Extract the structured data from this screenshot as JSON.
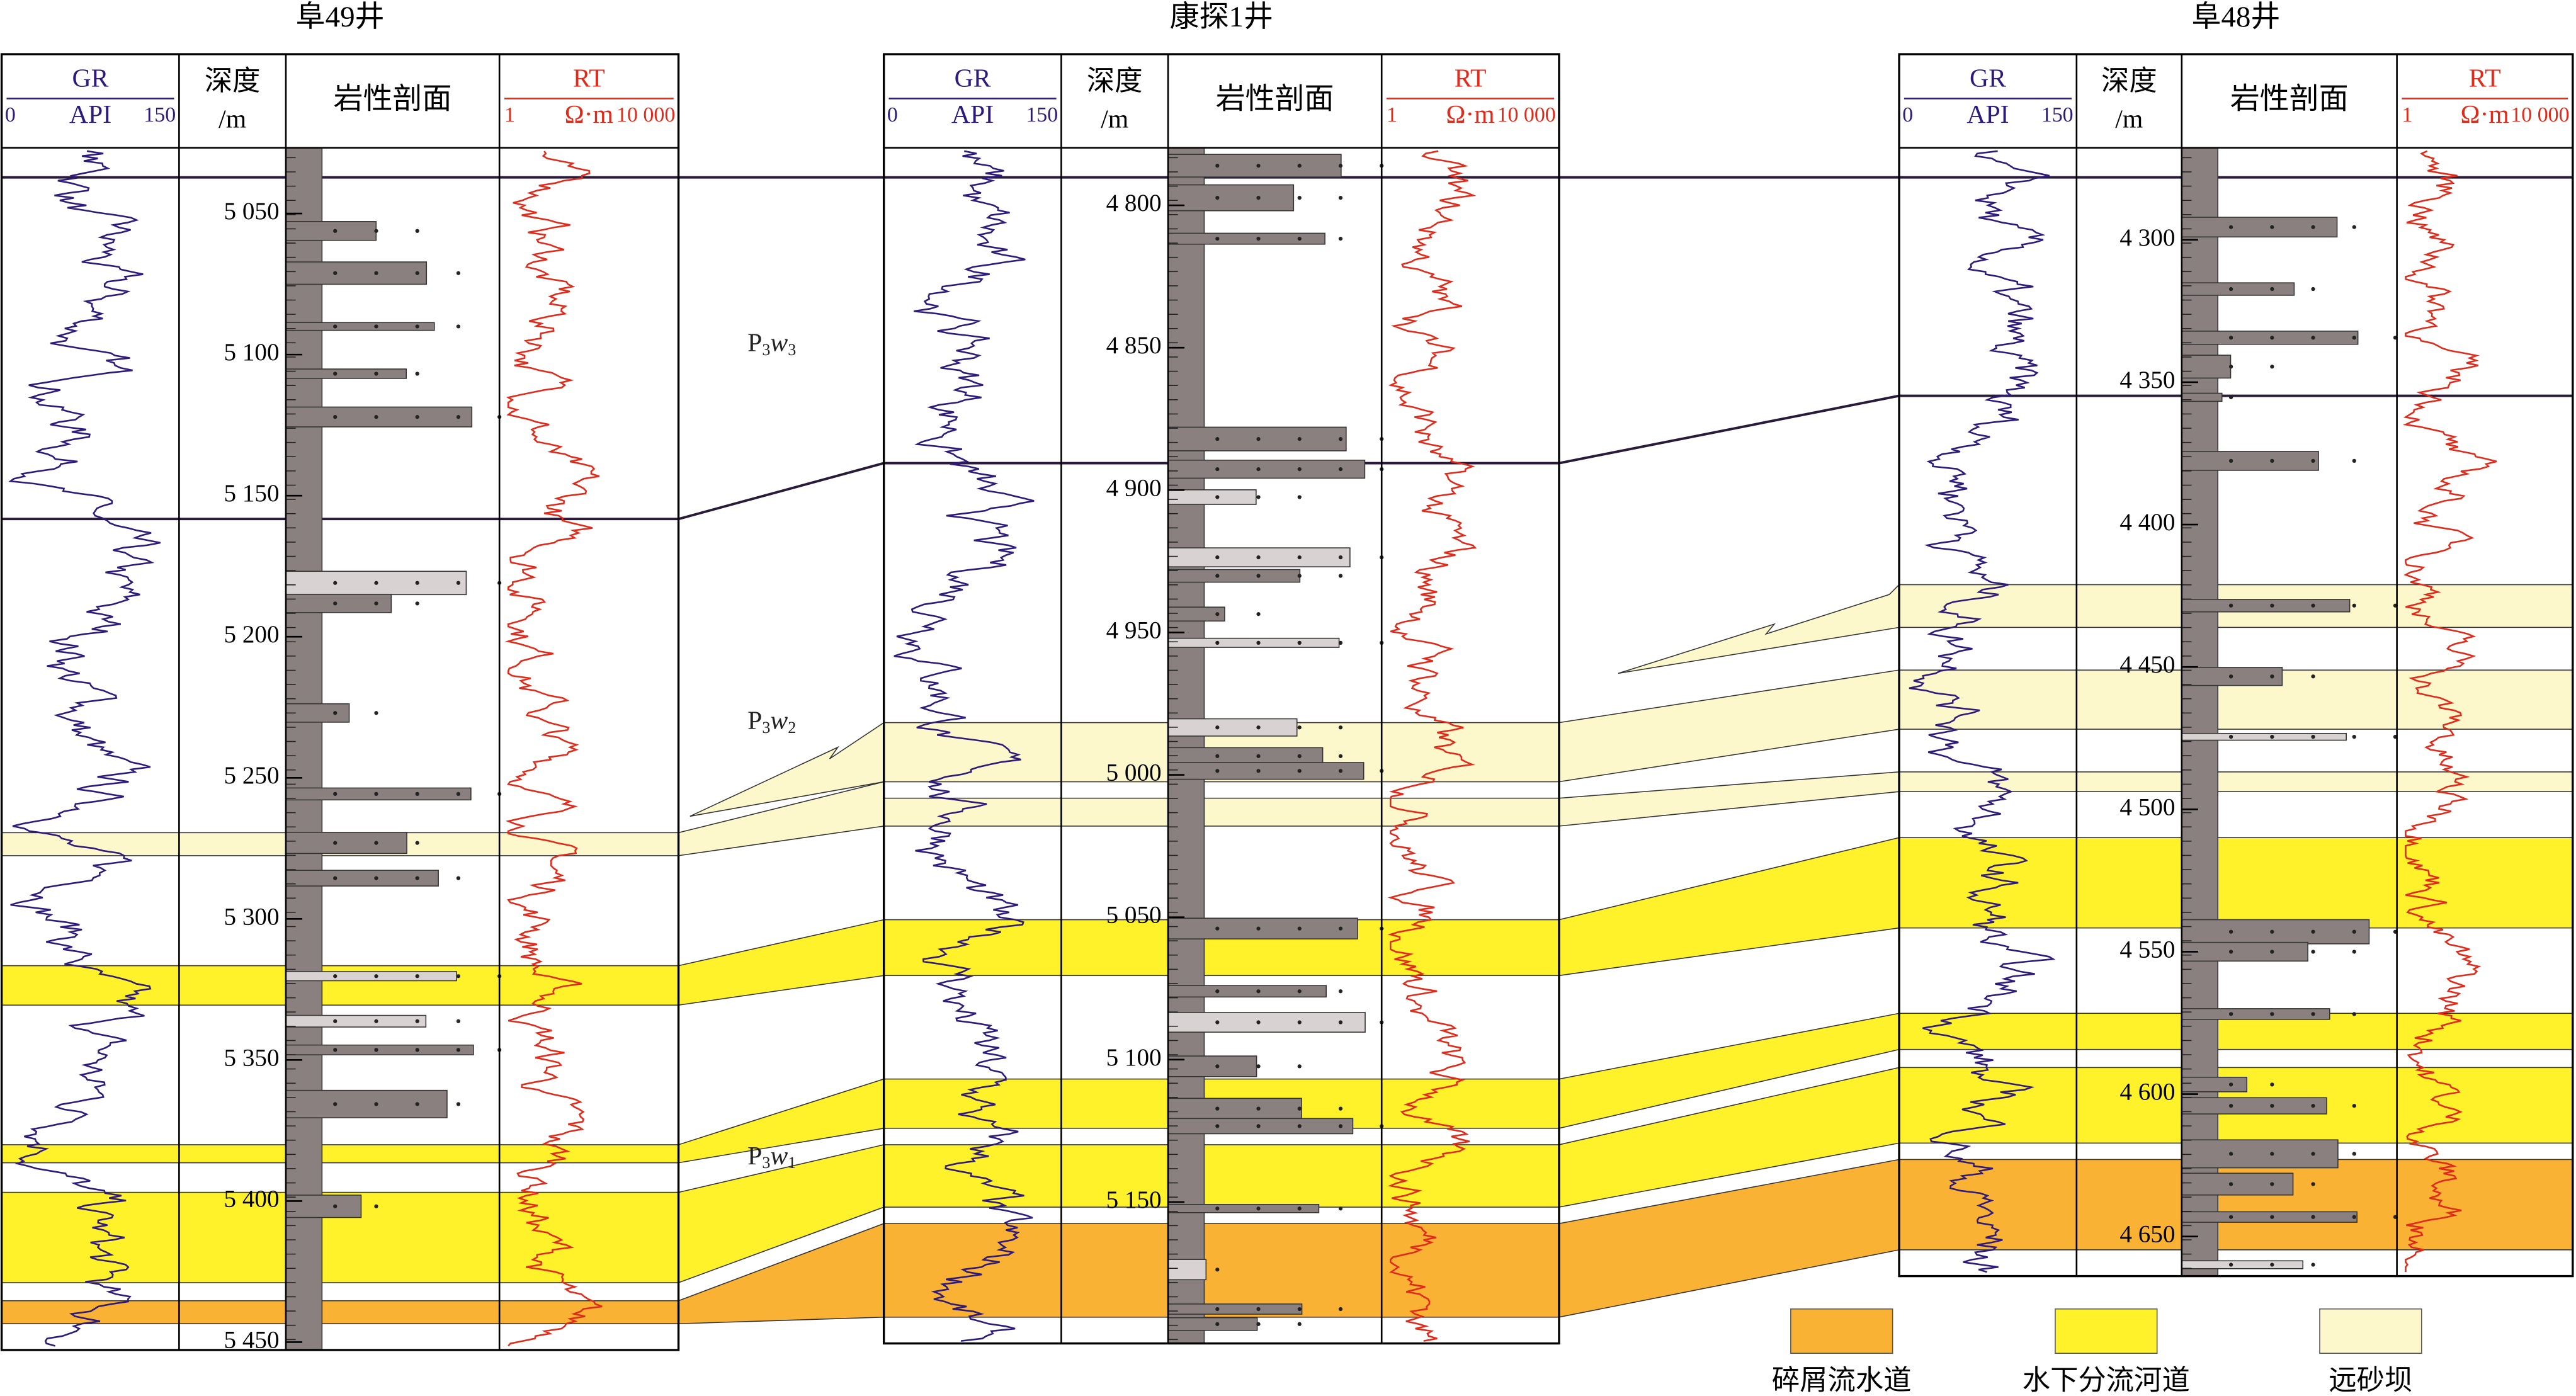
{
  "wells": [
    {
      "name": "阜49井",
      "depth_ticks": [
        "5 050",
        "5 100",
        "5 150",
        "5 200",
        "5 250",
        "5 300",
        "5 350",
        "5 400",
        "5 450"
      ]
    },
    {
      "name": "康探1井",
      "depth_ticks": [
        "4 800",
        "4 850",
        "4 900",
        "4 950",
        "5 000",
        "5 050",
        "5 100",
        "5 150"
      ]
    },
    {
      "name": "阜48井",
      "depth_ticks": [
        "4 300",
        "4 350",
        "4 400",
        "4 450",
        "4 500",
        "4 550",
        "4 600",
        "4 650"
      ]
    }
  ],
  "column_headers": {
    "gr": "GR",
    "gr_min": "0",
    "gr_unit": "API",
    "gr_max": "150",
    "depth": "深度",
    "depth_unit": "/m",
    "lithology": "岩性剖面",
    "rt": "RT",
    "rt_min": "1",
    "rt_unit": "Ω·m",
    "rt_max": "10 000"
  },
  "formations": [
    {
      "base": "P",
      "sub1": "3",
      "mid": "w",
      "sub2": "3"
    },
    {
      "base": "P",
      "sub1": "3",
      "mid": "w",
      "sub2": "2"
    },
    {
      "base": "P",
      "sub1": "3",
      "mid": "w",
      "sub2": "1"
    }
  ],
  "legend": [
    {
      "label": "碎屑流水道",
      "color": "#f9b233"
    },
    {
      "label": "水下分流河道",
      "color": "#fff22a"
    },
    {
      "label": "远砂坝",
      "color": "#fdf8cc"
    }
  ]
}
